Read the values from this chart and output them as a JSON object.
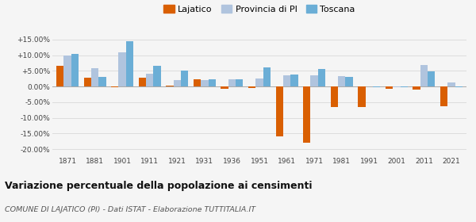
{
  "years": [
    1871,
    1881,
    1901,
    1911,
    1921,
    1931,
    1936,
    1951,
    1961,
    1971,
    1981,
    1991,
    2001,
    2011,
    2021
  ],
  "lajatico": [
    6.5,
    2.7,
    -0.3,
    2.7,
    0.2,
    2.2,
    -0.8,
    -0.4,
    -16.0,
    -18.0,
    -6.5,
    -6.5,
    -0.8,
    -0.9,
    -6.2
  ],
  "provincia_pi": [
    10.0,
    5.8,
    11.0,
    4.0,
    2.0,
    2.0,
    2.2,
    2.6,
    3.7,
    3.5,
    3.3,
    0.0,
    -0.3,
    6.8,
    1.2
  ],
  "toscana": [
    10.5,
    3.0,
    14.5,
    6.5,
    5.2,
    2.2,
    2.2,
    6.2,
    3.9,
    5.7,
    3.1,
    -0.3,
    -0.3,
    4.9,
    -0.3
  ],
  "bar_width": 0.27,
  "color_lajatico": "#d95f02",
  "color_provincia": "#b0c4de",
  "color_toscana": "#6baed6",
  "title": "Variazione percentuale della popolazione ai censimenti",
  "subtitle": "COMUNE DI LAJATICO (PI) - Dati ISTAT - Elaborazione TUTTITALIA.IT",
  "ylim": [
    -22,
    17
  ],
  "yticks": [
    -20,
    -15,
    -10,
    -5,
    0,
    5,
    10,
    15
  ],
  "ytick_labels": [
    "-20.00%",
    "-15.00%",
    "-10.00%",
    "-5.00%",
    "0.00%",
    "+5.00%",
    "+10.00%",
    "+15.00%"
  ],
  "background_color": "#f5f5f5",
  "grid_color": "#dddddd"
}
